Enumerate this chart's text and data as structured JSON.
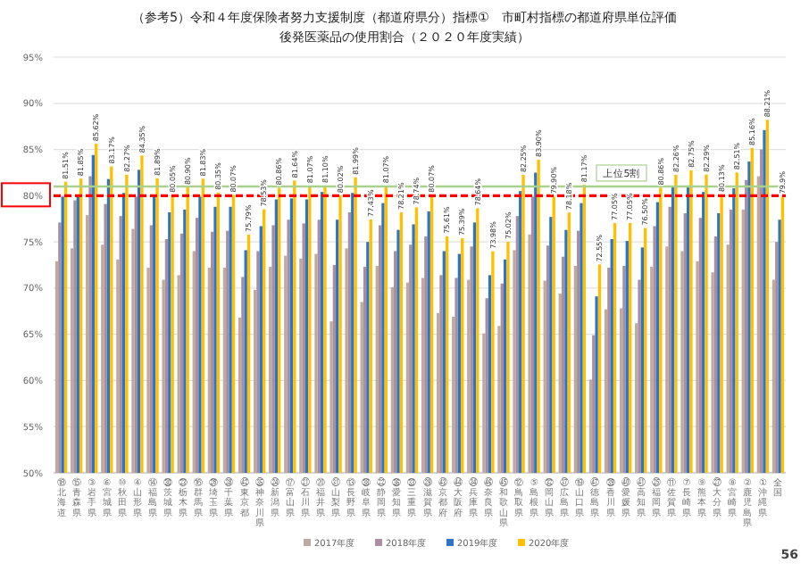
{
  "chart_data": {
    "type": "bar",
    "title": "（参考5）令和４年度保険者努力支援制度（都道府県分）指標①　市町村指標の都道府県単位評価",
    "subtitle": "後発医薬品の使用割合（２０２０年度実績）",
    "categories": [
      "⑱北海道",
      "⑮青森県",
      "③岩手県",
      "⑥宮城県",
      "⑩秋田県",
      "④山形県",
      "⑭福島県",
      "㉚茨城県",
      "㉓栃木県",
      "⑯群馬県",
      "㉖埼玉県",
      "㉘千葉県",
      "㊷東京都",
      "㉟神奈川県",
      "㉔新潟県",
      "⑰富山県",
      "㉑石川県",
      "⑳福井県",
      "㉛山梨県",
      "⑬長野県",
      "㊳岐阜県",
      "㉒静岡県",
      "㊱愛知県",
      "㉝三重県",
      "㉙滋賀県",
      "㊸京都府",
      "㊹大阪府",
      "㉞兵庫県",
      "㊻奈良県",
      "㊺和歌山県",
      "⑫鳥取県",
      "⑤島根県",
      "㉜岡山県",
      "㊲広島県",
      "⑲山口県",
      "㊼徳島県",
      "㊴香川県",
      "㊵愛媛県",
      "㊶高知県",
      "㉕福岡県",
      "⑪佐賀県",
      "⑦長崎県",
      "⑨熊本県",
      "㉗大分県",
      "⑧宮崎県",
      "②鹿児島県",
      "①沖縄県",
      "全国"
    ],
    "series": [
      {
        "name": "2017年度",
        "color": "#bfaaa2",
        "values": [
          72.9,
          74.3,
          77.9,
          74.7,
          73.1,
          76.4,
          72.2,
          70.9,
          71.4,
          74.0,
          72.2,
          72.2,
          66.8,
          69.8,
          72.3,
          73.5,
          73.2,
          73.7,
          66.4,
          74.3,
          68.5,
          72.4,
          70.1,
          70.6,
          71.1,
          67.3,
          66.9,
          70.9,
          65.1,
          65.9,
          74.1,
          75.8,
          70.8,
          69.4,
          72.4,
          60.1,
          67.7,
          67.8,
          66.2,
          72.3,
          74.5,
          74.0,
          72.9,
          71.7,
          74.7,
          78.5,
          82.1,
          70.9
        ]
      },
      {
        "name": "2018年度",
        "color": "#a98e9e",
        "values": [
          77.1,
          79.5,
          82.1,
          79.1,
          77.8,
          79.9,
          76.8,
          75.3,
          75.9,
          77.6,
          76.1,
          76.2,
          71.2,
          74.0,
          76.8,
          77.4,
          77.0,
          77.4,
          72.5,
          78.2,
          72.3,
          76.8,
          74.0,
          74.7,
          75.6,
          71.4,
          71.1,
          74.5,
          68.9,
          70.5,
          77.8,
          79.9,
          74.6,
          73.4,
          76.2,
          64.9,
          72.2,
          72.4,
          70.9,
          76.7,
          78.8,
          78.1,
          77.6,
          75.6,
          78.5,
          81.7,
          85.0,
          75.0
        ]
      },
      {
        "name": "2019年度",
        "color": "#2e75c6",
        "values": [
          79.9,
          79.9,
          84.4,
          81.8,
          80.3,
          82.8,
          79.9,
          78.2,
          78.5,
          79.9,
          78.8,
          78.8,
          74.1,
          76.7,
          79.6,
          79.7,
          79.6,
          80.4,
          77.4,
          80.3,
          75.0,
          79.2,
          76.3,
          76.9,
          78.3,
          74.0,
          73.7,
          77.1,
          71.4,
          73.1,
          80.5,
          82.5,
          77.7,
          76.3,
          79.2,
          69.1,
          75.3,
          75.1,
          74.4,
          79.3,
          81.0,
          81.1,
          80.4,
          78.1,
          80.8,
          83.7,
          87.1,
          77.4
        ]
      },
      {
        "name": "2020年度",
        "color": "#ffc000",
        "values": [
          81.51,
          81.85,
          85.62,
          83.17,
          82.27,
          84.35,
          81.89,
          80.05,
          80.9,
          81.83,
          80.35,
          80.07,
          75.79,
          78.53,
          80.86,
          81.64,
          81.07,
          81.1,
          80.02,
          81.99,
          77.43,
          81.07,
          78.21,
          78.74,
          80.07,
          75.61,
          75.39,
          78.64,
          73.98,
          75.02,
          82.25,
          83.9,
          79.9,
          78.18,
          81.17,
          72.55,
          77.05,
          77.05,
          76.5,
          80.86,
          82.26,
          82.75,
          82.29,
          80.13,
          82.51,
          85.16,
          88.21,
          79.9
        ],
        "value_labels": [
          "81.51%",
          "81.85%",
          "85.62%",
          "83.17%",
          "82.27%",
          "84.35%",
          "81.89%",
          "80.05%",
          "80.90%",
          "81.83%",
          "80.35%",
          "80.07%",
          "75.79%",
          "78.53%",
          "80.86%",
          "81.64%",
          "81.07%",
          "81.10%",
          "80.02%",
          "81.99%",
          "77.43%",
          "81.07%",
          "78.21%",
          "78.74%",
          "80.07%",
          "75.61%",
          "75.39%",
          "78.64%",
          "73.98%",
          "75.02%",
          "82.25%",
          "83.90%",
          "79.90%",
          "78.18%",
          "81.17%",
          "72.55%",
          "77.05%",
          "77.05%",
          "76.50%",
          "80.86%",
          "82.26%",
          "82.75%",
          "82.29%",
          "80.13%",
          "82.51%",
          "85.16%",
          "88.21%",
          "79.9%"
        ]
      }
    ],
    "ylim": [
      50,
      95
    ],
    "yticks": [
      {
        "value": 50,
        "label": "50%"
      },
      {
        "value": 55,
        "label": "55%"
      },
      {
        "value": 60,
        "label": "60%"
      },
      {
        "value": 65,
        "label": "65%"
      },
      {
        "value": 70,
        "label": "70%"
      },
      {
        "value": 75,
        "label": "75%"
      },
      {
        "value": 80,
        "label": "80%"
      },
      {
        "value": 85,
        "label": "85%"
      },
      {
        "value": 90,
        "label": "90%"
      },
      {
        "value": 95,
        "label": "95%"
      }
    ],
    "grid": "y",
    "legend": "bottom",
    "ref_lines": [
      {
        "axis": "y",
        "value": 81.0,
        "label": "上位5割",
        "color": "#a9d18e",
        "line_style": "solid"
      },
      {
        "axis": "y",
        "value": 80,
        "label": null,
        "color": "#ff0000",
        "line_style": "dashed"
      }
    ],
    "annotations": [
      "56"
    ]
  }
}
